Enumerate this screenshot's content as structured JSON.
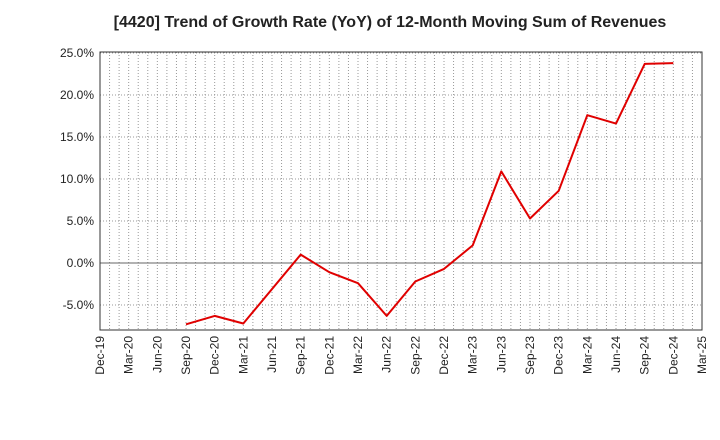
{
  "chart_data": {
    "type": "line",
    "title": "[4420]  Trend of Growth Rate (YoY) of 12-Month Moving Sum of Revenues",
    "xlabel": "",
    "ylabel": "",
    "ylim": [
      -8.0,
      25.0
    ],
    "yticks": [
      25.0,
      20.0,
      15.0,
      10.0,
      5.0,
      0.0,
      -5.0
    ],
    "ytick_labels": [
      "25.0%",
      "20.0%",
      "15.0%",
      "10.0%",
      "5.0%",
      "0.0%",
      "-5.0%"
    ],
    "x_tick_labels": [
      "Dec-19",
      "Mar-20",
      "Jun-20",
      "Sep-20",
      "Dec-20",
      "Mar-21",
      "Jun-21",
      "Sep-21",
      "Dec-21",
      "Mar-22",
      "Jun-22",
      "Sep-22",
      "Dec-22",
      "Mar-23",
      "Jun-23",
      "Sep-23",
      "Dec-23",
      "Mar-24",
      "Jun-24",
      "Sep-24",
      "Dec-24",
      "Mar-25"
    ],
    "grid": true,
    "line_color": "#e00000",
    "series": [
      {
        "x": [
          "Sep-20",
          "Dec-20",
          "Mar-21",
          "Sep-21",
          "Dec-21",
          "Mar-22",
          "Jun-22",
          "Sep-22",
          "Dec-22",
          "Mar-23",
          "Jun-23",
          "Sep-23",
          "Dec-23",
          "Mar-24",
          "Jun-24",
          "Sep-24",
          "Dec-24"
        ],
        "values": [
          -7.3,
          -6.3,
          -7.2,
          1.0,
          -1.1,
          -2.4,
          -6.3,
          -2.2,
          -0.7,
          2.1,
          10.9,
          5.3,
          8.6,
          17.6,
          16.6,
          23.7,
          23.8
        ]
      }
    ]
  }
}
